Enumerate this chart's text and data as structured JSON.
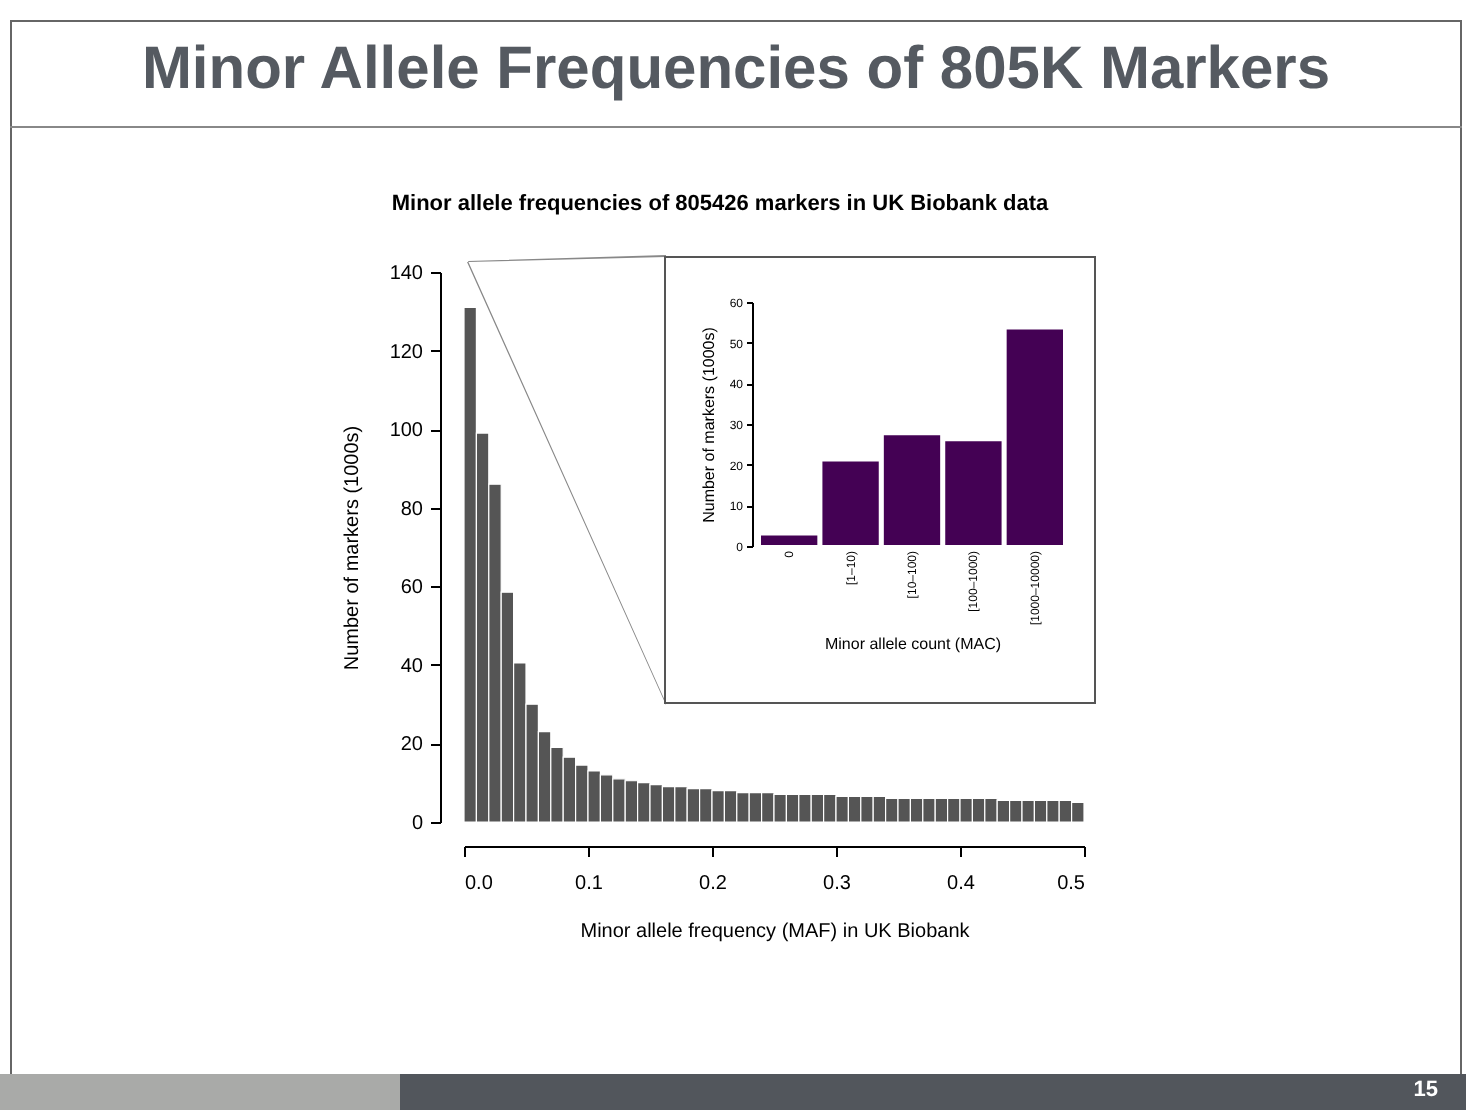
{
  "chart_data": [
    {
      "type": "histogram",
      "title": "Minor Allele Frequencies of 805K Markers",
      "subtitle": "Minor allele frequencies of 805426 markers in UK Biobank data",
      "xlabel": "Minor allele frequency (MAF) in UK Biobank",
      "ylabel": "Number of markers (1000s)",
      "annotations": [
        "15"
      ],
      "color": "#555555",
      "bins": [
        0,
        0.01,
        0.02,
        0.03,
        0.04,
        0.05,
        0.06,
        0.07,
        0.08,
        0.09,
        0.1,
        0.11,
        0.12,
        0.13,
        0.14,
        0.15,
        0.16,
        0.17,
        0.18,
        0.19,
        0.2,
        0.21,
        0.22,
        0.23,
        0.24,
        0.25,
        0.26,
        0.27,
        0.28,
        0.29,
        0.3,
        0.31,
        0.32,
        0.33,
        0.34,
        0.35,
        0.36,
        0.37,
        0.38,
        0.39,
        0.4,
        0.41,
        0.42,
        0.43,
        0.44,
        0.45,
        0.46,
        0.47,
        0.48,
        0.49,
        0.5
      ],
      "values": [
        131,
        99,
        86,
        58.5,
        40.5,
        30,
        23,
        19,
        16.5,
        14.5,
        13,
        12,
        11,
        10.5,
        10,
        9.5,
        9,
        9,
        8.5,
        8.5,
        8,
        8,
        7.5,
        7.5,
        7.5,
        7,
        7,
        7,
        7,
        7,
        6.5,
        6.5,
        6.5,
        6.5,
        6,
        6,
        6,
        6,
        6,
        6,
        6,
        6,
        6,
        5.5,
        5.5,
        5.5,
        5.5,
        5.5,
        5.5,
        5
      ],
      "xlim": [
        0,
        0.5
      ],
      "xticks": [
        {
          "value": 0,
          "label": "0.0"
        },
        0.1,
        0.2,
        0.3,
        0.4,
        0.5
      ],
      "ylim": [
        0,
        140
      ],
      "yticks": [
        0,
        20,
        40,
        60,
        80,
        100,
        120,
        140
      ]
    },
    {
      "type": "bar",
      "xlabel": "Minor allele count (MAC)",
      "ylabel": "Number of markers (1000s)",
      "color": "#440154",
      "categories": [
        "0",
        "[1–10)",
        "[10–100)",
        "[100–1000)",
        "[1000–10000)"
      ],
      "values": [
        2.8,
        21,
        27.5,
        26,
        53.5
      ],
      "ylim": [
        0,
        60
      ],
      "yticks": [
        0,
        10,
        20,
        30,
        40,
        50,
        60
      ]
    }
  ]
}
